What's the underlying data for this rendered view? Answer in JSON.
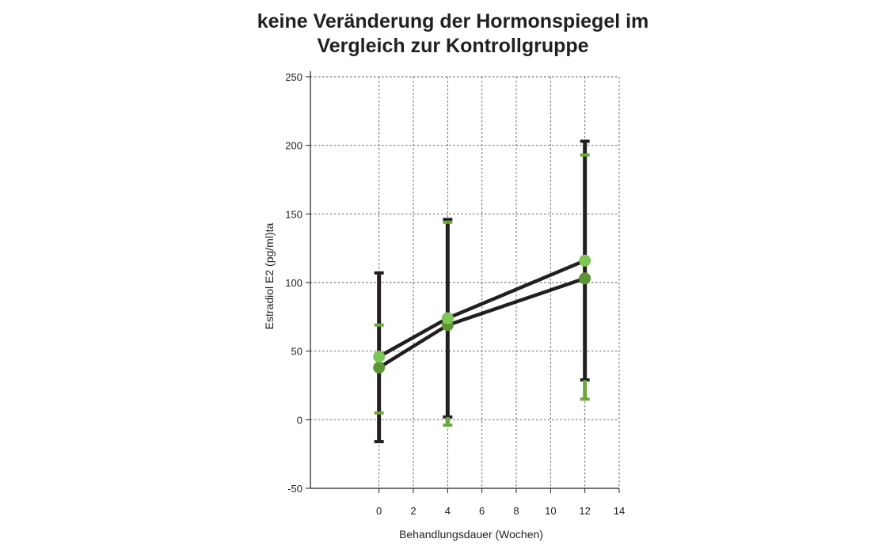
{
  "chart_data": {
    "type": "line",
    "title_lines": [
      "keine Veränderung der Hormonspiegel im",
      "Vergleich zur Kontrollgruppe"
    ],
    "xlabel": "Behandlungsdauer (Wochen)",
    "ylabel": "Estradiol E2 (pg/ml)ta",
    "xlim": [
      -4,
      14
    ],
    "ylim": [
      -50,
      250
    ],
    "xticks": [
      0,
      2,
      4,
      6,
      8,
      10,
      12,
      14
    ],
    "yticks": [
      -50,
      0,
      50,
      100,
      150,
      200,
      250
    ],
    "grid": true,
    "line_color": "#231f20",
    "series": [
      {
        "color": "#7dc657",
        "points": [
          {
            "x": 0,
            "y": 46,
            "low": 5,
            "high": 69
          },
          {
            "x": 4,
            "y": 74,
            "low": -4,
            "high": 144
          },
          {
            "x": 12,
            "y": 116,
            "low": 15,
            "high": 193
          }
        ]
      },
      {
        "color": "#5e9433",
        "points": [
          {
            "x": 0,
            "y": 38,
            "low": -16,
            "high": 107
          },
          {
            "x": 4,
            "y": 69,
            "low": 2,
            "high": 146
          },
          {
            "x": 12,
            "y": 103,
            "low": 29,
            "high": 203
          }
        ]
      }
    ]
  }
}
